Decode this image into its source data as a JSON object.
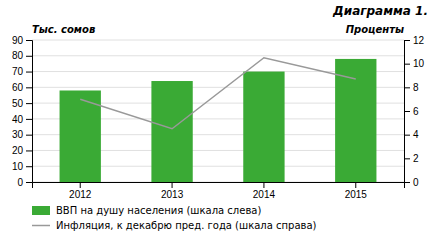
{
  "chart_data": {
    "type": "bar",
    "title": "Диаграмма 1.",
    "ylabel": "Тыс. сомов",
    "y2label": "Проценты",
    "categories": [
      "2012",
      "2013",
      "2014",
      "2015"
    ],
    "series": [
      {
        "name": "ВВП на душу населения (шкала слева)",
        "type": "bar",
        "color": "#3aaa35",
        "values": [
          58,
          64,
          70,
          78
        ]
      },
      {
        "name": "Инфляция, к декабрю пред. года (шкала справа)",
        "type": "line",
        "color": "#999999",
        "axis": "y2",
        "values": [
          7.0,
          4.5,
          10.5,
          8.7
        ]
      }
    ],
    "ylim": [
      0,
      90
    ],
    "yticks": [
      0,
      10,
      20,
      30,
      40,
      50,
      60,
      70,
      80,
      90
    ],
    "y2lim": [
      0,
      12
    ],
    "y2ticks": [
      0,
      2,
      4,
      6,
      8,
      10,
      12
    ],
    "grid": true,
    "legend": "bottom"
  }
}
